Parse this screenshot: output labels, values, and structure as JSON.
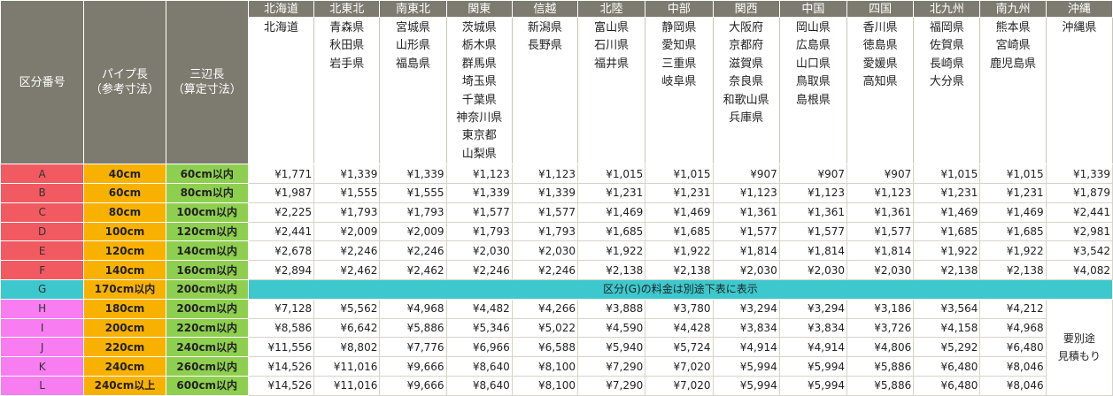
{
  "header": {
    "code_label": "区分番号",
    "pipe_label_1": "パイプ長",
    "pipe_label_2": "（参考寸法）",
    "three_label_1": "三辺長",
    "three_label_2": "（算定寸法）"
  },
  "regions": [
    {
      "name": "北海道",
      "prefs": [
        "北海道"
      ]
    },
    {
      "name": "北東北",
      "prefs": [
        "青森県",
        "秋田県",
        "岩手県"
      ]
    },
    {
      "name": "南東北",
      "prefs": [
        "宮城県",
        "山形県",
        "福島県"
      ]
    },
    {
      "name": "関東",
      "prefs": [
        "茨城県",
        "栃木県",
        "群馬県",
        "埼玉県",
        "千葉県",
        "神奈川県",
        "東京都",
        "山梨県"
      ]
    },
    {
      "name": "信越",
      "prefs": [
        "新潟県",
        "長野県"
      ]
    },
    {
      "name": "北陸",
      "prefs": [
        "富山県",
        "石川県",
        "福井県"
      ]
    },
    {
      "name": "中部",
      "prefs": [
        "静岡県",
        "愛知県",
        "三重県",
        "岐阜県"
      ]
    },
    {
      "name": "関西",
      "prefs": [
        "大阪府",
        "京都府",
        "滋賀県",
        "奈良県",
        "和歌山県",
        "兵庫県"
      ]
    },
    {
      "name": "中国",
      "prefs": [
        "岡山県",
        "広島県",
        "山口県",
        "鳥取県",
        "島根県"
      ]
    },
    {
      "name": "四国",
      "prefs": [
        "香川県",
        "徳島県",
        "愛媛県",
        "高知県"
      ]
    },
    {
      "name": "北九州",
      "prefs": [
        "福岡県",
        "佐賀県",
        "長崎県",
        "大分県"
      ]
    },
    {
      "name": "南九州",
      "prefs": [
        "熊本県",
        "宮崎県",
        "鹿児島県"
      ]
    },
    {
      "name": "沖縄",
      "prefs": [
        "沖縄県"
      ]
    }
  ],
  "rows": [
    {
      "code": "A",
      "pipe": "40cm",
      "sum": "60cm以内",
      "prices": [
        "¥1,771",
        "¥1,339",
        "¥1,339",
        "¥1,123",
        "¥1,123",
        "¥1,015",
        "¥1,015",
        "¥907",
        "¥907",
        "¥907",
        "¥1,015",
        "¥1,015",
        "¥1,339"
      ]
    },
    {
      "code": "B",
      "pipe": "60cm",
      "sum": "80cm以内",
      "prices": [
        "¥1,987",
        "¥1,555",
        "¥1,555",
        "¥1,339",
        "¥1,339",
        "¥1,231",
        "¥1,231",
        "¥1,123",
        "¥1,123",
        "¥1,123",
        "¥1,231",
        "¥1,231",
        "¥1,879"
      ]
    },
    {
      "code": "C",
      "pipe": "80cm",
      "sum": "100cm以内",
      "prices": [
        "¥2,225",
        "¥1,793",
        "¥1,793",
        "¥1,577",
        "¥1,577",
        "¥1,469",
        "¥1,469",
        "¥1,361",
        "¥1,361",
        "¥1,361",
        "¥1,469",
        "¥1,469",
        "¥2,441"
      ]
    },
    {
      "code": "D",
      "pipe": "100cm",
      "sum": "120cm以内",
      "prices": [
        "¥2,441",
        "¥2,009",
        "¥2,009",
        "¥1,793",
        "¥1,793",
        "¥1,685",
        "¥1,685",
        "¥1,577",
        "¥1,577",
        "¥1,577",
        "¥1,685",
        "¥1,685",
        "¥2,981"
      ]
    },
    {
      "code": "E",
      "pipe": "120cm",
      "sum": "140cm以内",
      "prices": [
        "¥2,678",
        "¥2,246",
        "¥2,246",
        "¥2,030",
        "¥2,030",
        "¥1,922",
        "¥1,922",
        "¥1,814",
        "¥1,814",
        "¥1,814",
        "¥1,922",
        "¥1,922",
        "¥3,542"
      ]
    },
    {
      "code": "F",
      "pipe": "140cm",
      "sum": "160cm以内",
      "prices": [
        "¥2,894",
        "¥2,462",
        "¥2,462",
        "¥2,246",
        "¥2,246",
        "¥2,138",
        "¥2,138",
        "¥2,030",
        "¥2,030",
        "¥2,030",
        "¥2,138",
        "¥2,138",
        "¥4,082"
      ]
    }
  ],
  "g_row": {
    "code": "G",
    "pipe": "170cm以内",
    "sum": "200cm以内",
    "note": "区分(G)の料金は別途下表に表示"
  },
  "lower_rows": [
    {
      "code": "H",
      "pipe": "180cm",
      "sum": "200cm以内",
      "prices": [
        "¥7,128",
        "¥5,562",
        "¥4,968",
        "¥4,482",
        "¥4,266",
        "¥3,888",
        "¥3,780",
        "¥3,294",
        "¥3,294",
        "¥3,186",
        "¥3,564",
        "¥4,212"
      ]
    },
    {
      "code": "I",
      "pipe": "200cm",
      "sum": "220cm以内",
      "prices": [
        "¥8,586",
        "¥6,642",
        "¥5,886",
        "¥5,346",
        "¥5,022",
        "¥4,590",
        "¥4,428",
        "¥3,834",
        "¥3,834",
        "¥3,726",
        "¥4,158",
        "¥4,968"
      ]
    },
    {
      "code": "J",
      "pipe": "220cm",
      "sum": "240cm以内",
      "prices": [
        "¥11,556",
        "¥8,802",
        "¥7,776",
        "¥6,966",
        "¥6,588",
        "¥5,940",
        "¥5,724",
        "¥4,914",
        "¥4,914",
        "¥4,806",
        "¥5,292",
        "¥6,480"
      ]
    },
    {
      "code": "K",
      "pipe": "240cm",
      "sum": "260cm以内",
      "prices": [
        "¥14,526",
        "¥11,016",
        "¥9,666",
        "¥8,640",
        "¥8,100",
        "¥7,290",
        "¥7,020",
        "¥5,994",
        "¥5,994",
        "¥5,886",
        "¥6,480",
        "¥8,046"
      ]
    },
    {
      "code": "L",
      "pipe": "240cm以上",
      "sum": "600cm以内",
      "prices": [
        "¥14,526",
        "¥11,016",
        "¥9,666",
        "¥8,640",
        "¥8,100",
        "¥7,290",
        "¥7,020",
        "¥5,994",
        "¥5,994",
        "¥5,886",
        "¥6,480",
        "¥8,046"
      ]
    }
  ],
  "okinawa_special": {
    "line1": "要別途",
    "line2": "見積もり"
  },
  "colors": {
    "header_bg": "#7d7a6f",
    "code_red": "#f25a61",
    "code_cyan": "#3cc8cc",
    "code_magenta": "#f77df0",
    "pipe_orange": "#f9b100",
    "sum_green": "#8fcf50"
  }
}
